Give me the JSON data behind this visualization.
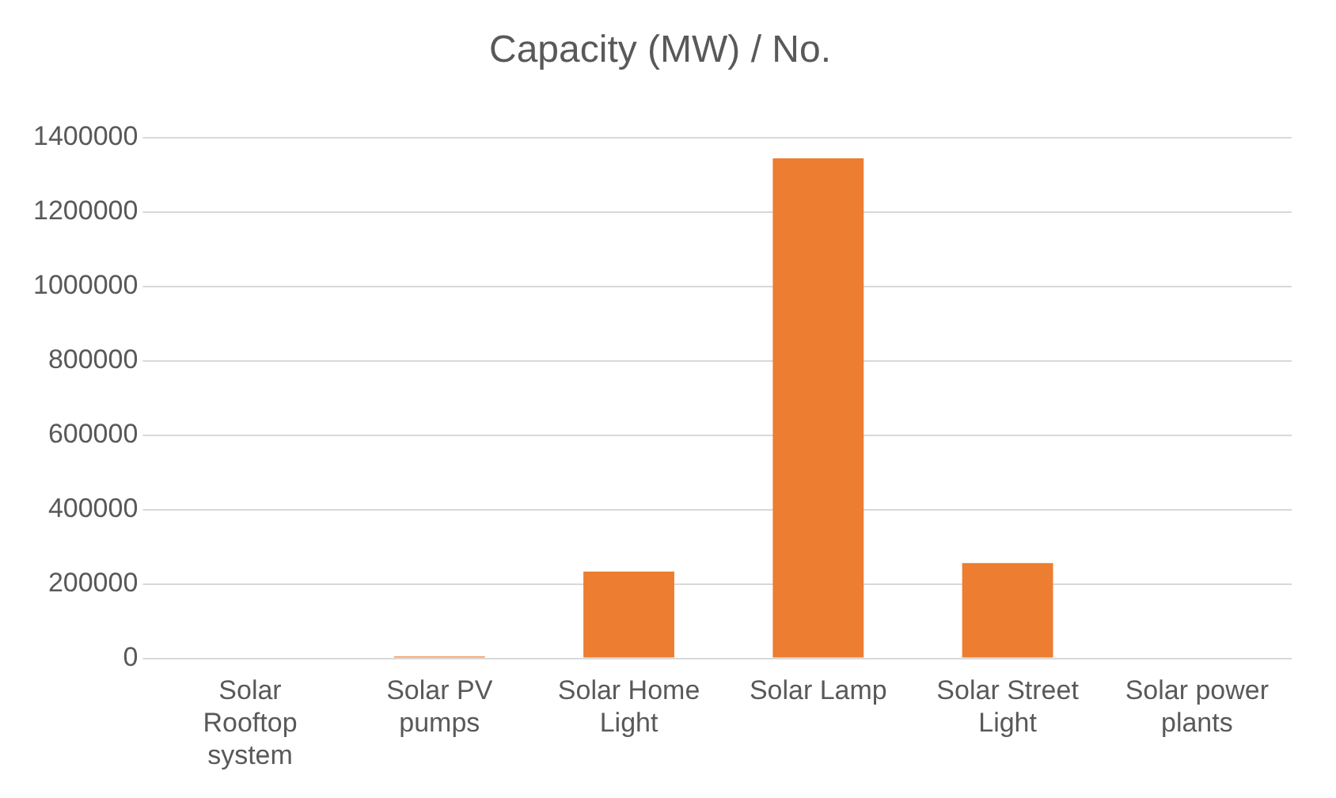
{
  "chart_data": {
    "type": "bar",
    "title": "Capacity (MW) / No.",
    "categories": [
      "Solar Rooftop system",
      "Solar PV pumps",
      "Solar Home Light",
      "Solar Lamp",
      "Solar Street Light",
      "Solar power plants"
    ],
    "values": [
      0,
      5000,
      233000,
      1344000,
      256000,
      0
    ],
    "color": "#ed7d31",
    "ylim": [
      0,
      1400000
    ],
    "yticks": [
      0,
      200000,
      400000,
      600000,
      800000,
      1000000,
      1200000,
      1400000
    ],
    "grid": "y"
  }
}
